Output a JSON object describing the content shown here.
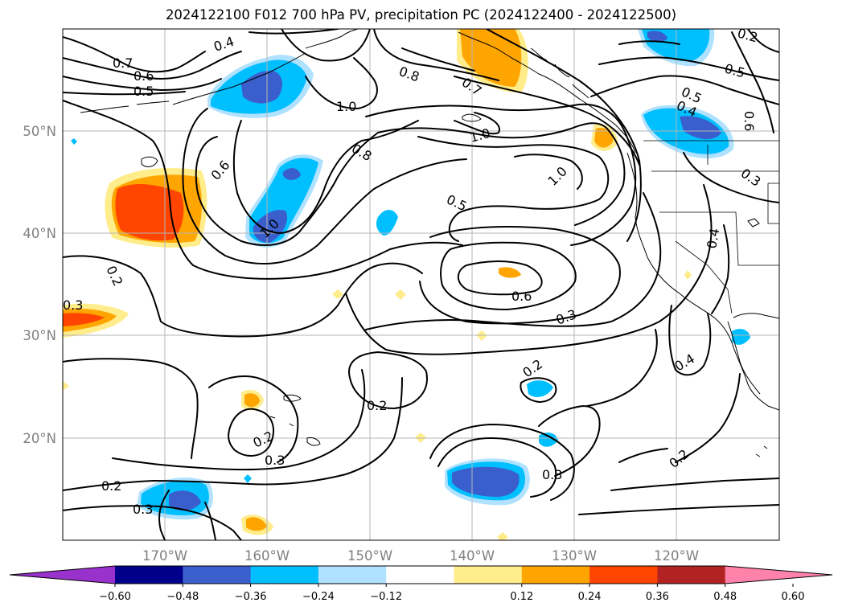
{
  "title": "2024122100 F012 700 hPa PV, precipitation PC (2024122400 - 2024122500)",
  "map": {
    "lat_labels": [
      "50°N",
      "40°N",
      "30°N",
      "20°N"
    ],
    "lon_labels": [
      "170°W",
      "160°W",
      "150°W",
      "140°W",
      "130°W",
      "120°W"
    ],
    "contour_labels": [
      "0.7",
      "0.6",
      "0.5",
      "0.4",
      "0.8",
      "0.7",
      "0.5",
      "0.5",
      "0.4",
      "0.6",
      "1.0",
      "1.0",
      "0.8",
      "0.6",
      "1.0",
      "0.5",
      "1.0",
      "0.2",
      "0.3",
      "0.6",
      "0.3",
      "0.4",
      "0.4",
      "0.3",
      "0.2",
      "0.2",
      "0.3",
      "0.2",
      "0.2",
      "0.3",
      "0.2",
      "0.3",
      "0.2"
    ]
  },
  "colorbar": {
    "colors": [
      "#9932CC",
      "#00008B",
      "#3A5FCD",
      "#00BFFF",
      "#B0E2FF",
      "#FFFFFF",
      "#FFEC8B",
      "#FFA500",
      "#FF4500",
      "#B22222",
      "#FF82AB"
    ],
    "tick_labels": [
      "−0.60",
      "−0.48",
      "−0.36",
      "−0.24",
      "−0.12",
      "0.12",
      "0.24",
      "0.36",
      "0.48",
      "0.60"
    ]
  }
}
